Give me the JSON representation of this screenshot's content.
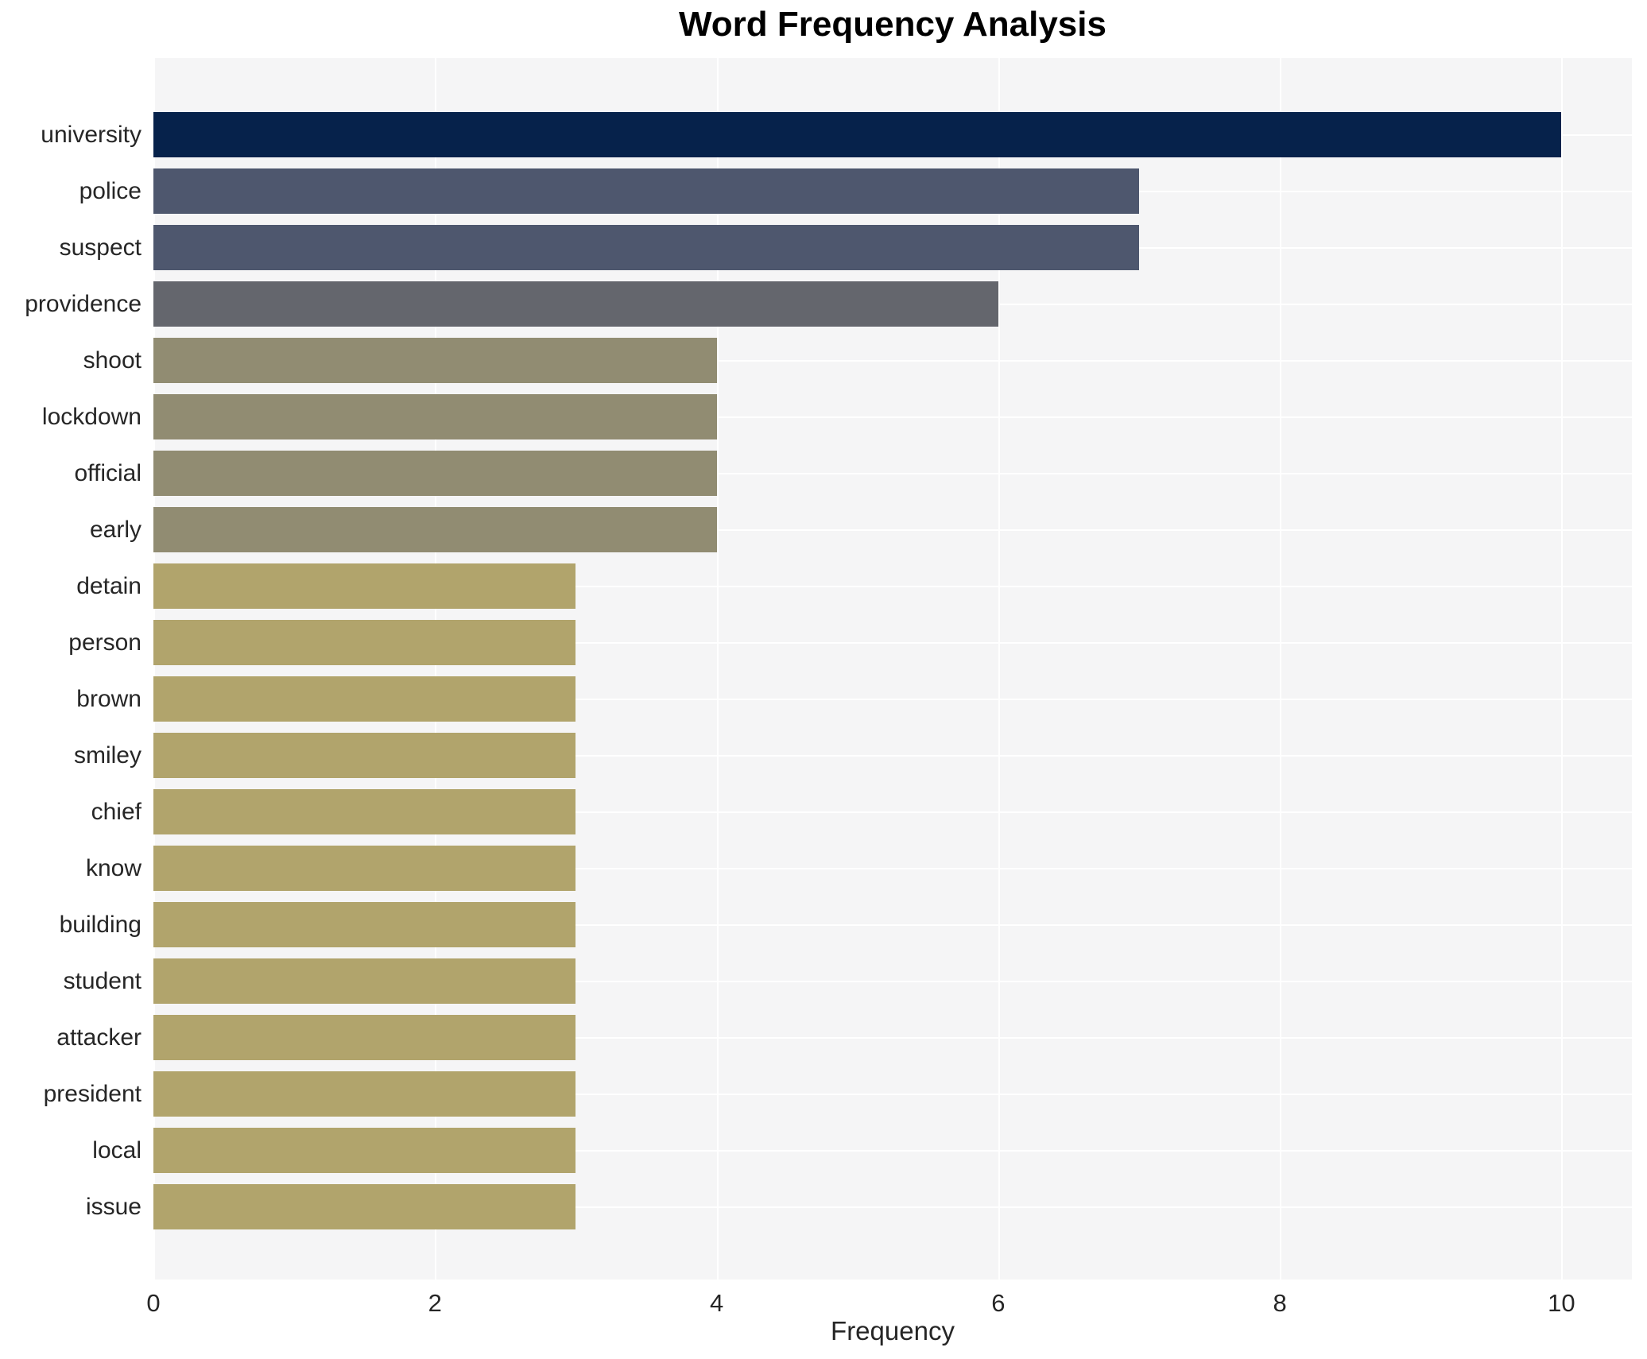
{
  "chart_data": {
    "type": "bar",
    "orientation": "horizontal",
    "title": "Word Frequency Analysis",
    "xlabel": "Frequency",
    "ylabel": "",
    "categories": [
      "university",
      "police",
      "suspect",
      "providence",
      "shoot",
      "lockdown",
      "official",
      "early",
      "detain",
      "person",
      "brown",
      "smiley",
      "chief",
      "know",
      "building",
      "student",
      "attacker",
      "president",
      "local",
      "issue"
    ],
    "values": [
      10,
      7,
      7,
      6,
      4,
      4,
      4,
      4,
      3,
      3,
      3,
      3,
      3,
      3,
      3,
      3,
      3,
      3,
      3,
      3
    ],
    "bar_colors": [
      "#06224b",
      "#4e576e",
      "#4e576e",
      "#64666d",
      "#918c72",
      "#918c72",
      "#918c72",
      "#918c72",
      "#b1a46c",
      "#b1a46c",
      "#b1a46c",
      "#b1a46c",
      "#b1a46c",
      "#b1a46c",
      "#b1a46c",
      "#b1a46c",
      "#b1a46c",
      "#b1a46c",
      "#b1a46c",
      "#b1a46c"
    ],
    "xlim": [
      0,
      10.5
    ],
    "xticks": [
      0,
      2,
      4,
      6,
      8,
      10
    ],
    "grid": true,
    "legend": false,
    "plot_background": "#f5f5f6",
    "grid_color": "#ffffff"
  }
}
